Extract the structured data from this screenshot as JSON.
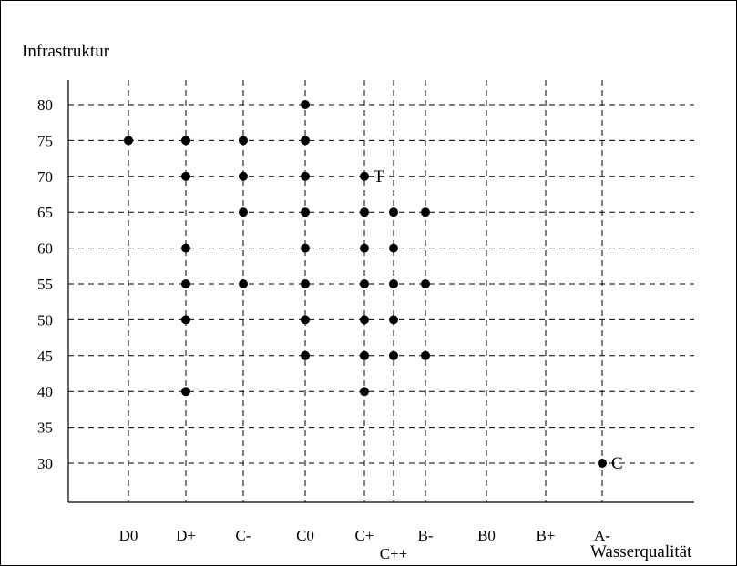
{
  "chart_data": {
    "type": "scatter",
    "ylabel": "Infrastruktur",
    "xlabel": "Wasserqualität",
    "grid": true,
    "x_categories": [
      "D0",
      "D+",
      "C-",
      "C0",
      "C+",
      "C++",
      "B-",
      "B0",
      "B+",
      "A-"
    ],
    "y_ticks": [
      80,
      75,
      70,
      65,
      60,
      55,
      50,
      45,
      40,
      35,
      30
    ],
    "ylim": [
      25,
      82
    ],
    "points": [
      {
        "x": "D0",
        "y": 75
      },
      {
        "x": "D+",
        "y": 75
      },
      {
        "x": "D+",
        "y": 70
      },
      {
        "x": "D+",
        "y": 60
      },
      {
        "x": "D+",
        "y": 55
      },
      {
        "x": "D+",
        "y": 50
      },
      {
        "x": "D+",
        "y": 40
      },
      {
        "x": "C-",
        "y": 75
      },
      {
        "x": "C-",
        "y": 70
      },
      {
        "x": "C-",
        "y": 65
      },
      {
        "x": "C-",
        "y": 55
      },
      {
        "x": "C0",
        "y": 80
      },
      {
        "x": "C0",
        "y": 75
      },
      {
        "x": "C0",
        "y": 70
      },
      {
        "x": "C0",
        "y": 65
      },
      {
        "x": "C0",
        "y": 60
      },
      {
        "x": "C0",
        "y": 55
      },
      {
        "x": "C0",
        "y": 50
      },
      {
        "x": "C0",
        "y": 45
      },
      {
        "x": "C+",
        "y": 70,
        "label": "T"
      },
      {
        "x": "C+",
        "y": 65
      },
      {
        "x": "C+",
        "y": 60
      },
      {
        "x": "C+",
        "y": 55
      },
      {
        "x": "C+",
        "y": 50
      },
      {
        "x": "C+",
        "y": 45
      },
      {
        "x": "C+",
        "y": 40
      },
      {
        "x": "C++",
        "y": 65
      },
      {
        "x": "C++",
        "y": 60
      },
      {
        "x": "C++",
        "y": 55
      },
      {
        "x": "C++",
        "y": 50
      },
      {
        "x": "C++",
        "y": 45
      },
      {
        "x": "B-",
        "y": 65
      },
      {
        "x": "B-",
        "y": 55
      },
      {
        "x": "B-",
        "y": 45
      },
      {
        "x": "A-",
        "y": 30,
        "label": "C"
      }
    ]
  }
}
